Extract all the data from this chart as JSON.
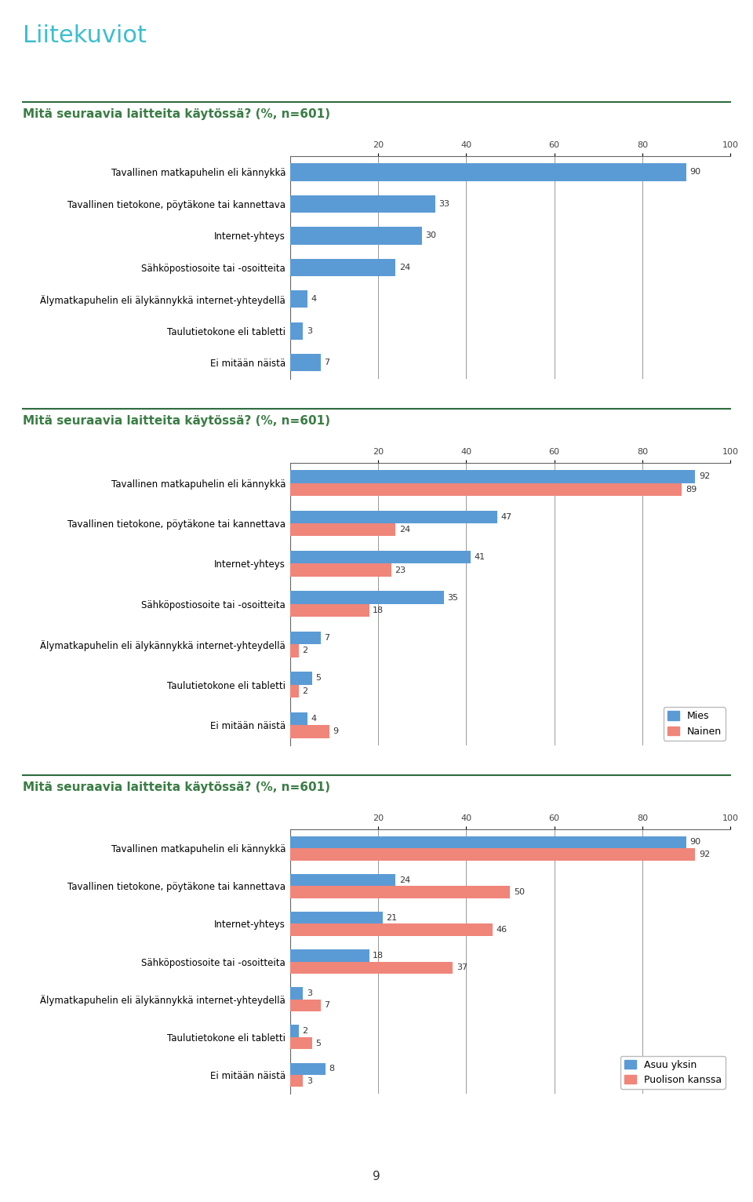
{
  "page_title": "Liitekuviot",
  "section_title": "Mitä seuraavia laitteita käytössä? (%, n=601)",
  "categories": [
    "Tavallinen matkapuhelin eli kännykkä",
    "Tavallinen tietokone, pöytäkone tai kannettava",
    "Internet-yhteys",
    "Sähköpostiosoite tai -osoitteita",
    "Älymatkapuhelin eli älykännykkä internet-yhteydellä",
    "Taulutietokone eli tabletti",
    "Ei mitään näistä"
  ],
  "chart1_values": [
    90,
    33,
    30,
    24,
    4,
    3,
    7
  ],
  "chart2_mies": [
    92,
    47,
    41,
    35,
    7,
    5,
    4
  ],
  "chart2_nainen": [
    89,
    24,
    23,
    18,
    2,
    2,
    9
  ],
  "chart3_yksin": [
    90,
    24,
    21,
    18,
    3,
    2,
    8
  ],
  "chart3_kanssa": [
    92,
    50,
    46,
    37,
    7,
    5,
    3
  ],
  "xlim": [
    0,
    100
  ],
  "xticks": [
    20,
    40,
    60,
    80,
    100
  ],
  "background_color": "#ffffff",
  "page_title_color": "#3bbfcf",
  "title_color": "#3a7d44",
  "separator_color": "#2e6b3e",
  "color_blue": "#5b9bd5",
  "color_pink": "#f0857a",
  "label_fontsize": 8.5,
  "title_fontsize": 11,
  "page_title_fontsize": 22,
  "value_fontsize": 8,
  "legend_fontsize": 9
}
